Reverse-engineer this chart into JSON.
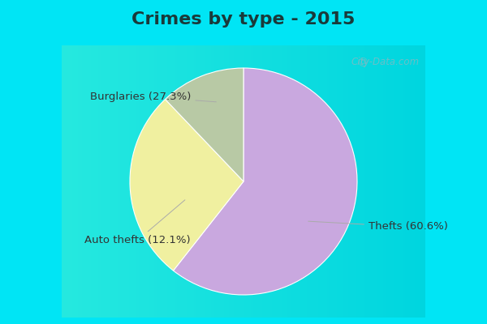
{
  "title": "Crimes by type - 2015",
  "slices": [
    {
      "label": "Thefts (60.6%)",
      "value": 60.6,
      "color": "#c9a8df"
    },
    {
      "label": "Burglaries (27.3%)",
      "value": 27.3,
      "color": "#f0f0a0"
    },
    {
      "label": "Auto thefts (12.1%)",
      "value": 12.1,
      "color": "#b8c9a5"
    }
  ],
  "bg_cyan": "#00e5f5",
  "bg_chart": "#e8f5ee",
  "title_fontsize": 16,
  "label_fontsize": 9.5,
  "watermark": "City-Data.com",
  "startangle": 90,
  "title_color": "#1a3a3a",
  "label_color": "#333333",
  "arrow_color": "#aaaaaa"
}
